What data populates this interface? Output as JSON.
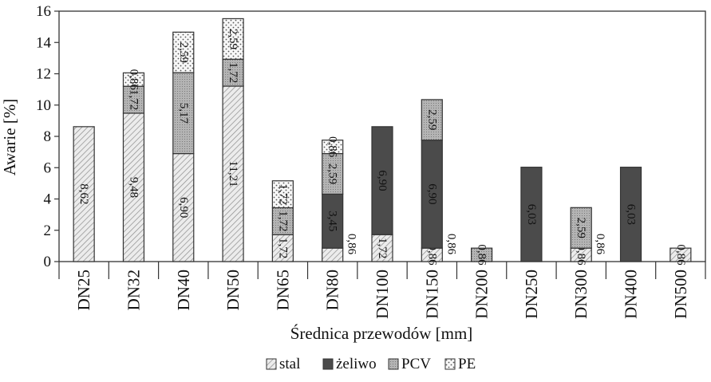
{
  "chart_data": {
    "type": "bar",
    "stacked": true,
    "xlabel": "Średnica przewodów [mm]",
    "ylabel": "Awarie [%]",
    "ylim": [
      0,
      16
    ],
    "yticks": [
      "0",
      "2",
      "4",
      "6",
      "8",
      "10",
      "12",
      "14",
      "16"
    ],
    "grid": false,
    "legend_position": "bottom",
    "categories": [
      "DN25",
      "DN32",
      "DN40",
      "DN50",
      "DN65",
      "DN80",
      "DN100",
      "DN150",
      "DN200",
      "DN250",
      "DN300",
      "DN400",
      "DN500"
    ],
    "series": [
      {
        "name": "stal",
        "pattern": "hatch",
        "color": "#e6e6e6",
        "values": [
          8.62,
          9.48,
          6.9,
          11.21,
          1.72,
          0.86,
          1.72,
          0.86,
          0,
          0,
          0.86,
          0,
          0.86
        ],
        "labels": [
          "8,62",
          "9,48",
          "6,90",
          "11,21",
          "1,72",
          "",
          "1,72",
          "0,86",
          "",
          "",
          "0,86",
          "",
          "0,86"
        ]
      },
      {
        "name": "żeliwo",
        "pattern": "solid",
        "color": "#4a4a4a",
        "values": [
          0,
          0,
          0,
          0,
          0,
          3.45,
          6.9,
          6.9,
          0,
          6.03,
          0,
          6.03,
          0
        ],
        "labels": [
          "",
          "",
          "",
          "",
          "",
          "3,45",
          "6,90",
          "6,90",
          "",
          "6,03",
          "",
          "6,03",
          ""
        ]
      },
      {
        "name": "PCV",
        "pattern": "dense",
        "color": "#a8a8a8",
        "values": [
          0,
          1.72,
          5.17,
          1.72,
          1.72,
          2.59,
          0,
          2.59,
          0.86,
          0,
          2.59,
          0,
          0
        ],
        "labels": [
          "",
          "1,72",
          "5,17",
          "1,72",
          "1,72",
          "2,59",
          "",
          "2,59",
          "0,86",
          "",
          "2,59",
          "",
          ""
        ]
      },
      {
        "name": "PE",
        "pattern": "dots",
        "color": "#f2f2f2",
        "values": [
          0,
          0.86,
          2.59,
          2.59,
          1.72,
          0.86,
          0,
          0,
          0,
          0,
          0,
          0,
          0
        ],
        "labels": [
          "",
          "0,86",
          "2,59",
          "2,59",
          "1,72",
          "0,86",
          "",
          "",
          "",
          "",
          "",
          "",
          ""
        ]
      }
    ],
    "outside_labels": [
      "",
      "",
      "",
      "",
      "",
      "0,86",
      "",
      "0,86",
      "",
      "",
      "0,86",
      "",
      ""
    ]
  }
}
